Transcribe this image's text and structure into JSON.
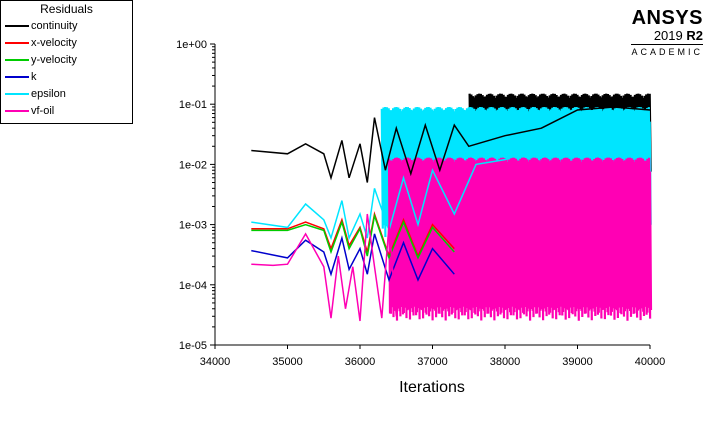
{
  "legend": {
    "title": "Residuals",
    "items": [
      {
        "label": "continuity",
        "color": "#000000"
      },
      {
        "label": "x-velocity",
        "color": "#ff0000"
      },
      {
        "label": "y-velocity",
        "color": "#00cc00"
      },
      {
        "label": "k",
        "color": "#0000cc"
      },
      {
        "label": "epsilon",
        "color": "#00e5ff"
      },
      {
        "label": "vf-oil",
        "color": "#ff00b4"
      }
    ]
  },
  "brand": {
    "name": "ANSYS",
    "version": "2019",
    "release": "R2",
    "edition": "ACADEMIC"
  },
  "chart_data": {
    "type": "line",
    "title": "",
    "xlabel": "Iterations",
    "ylabel": "",
    "xlim": [
      34000,
      40000
    ],
    "ylim": [
      1e-05,
      1
    ],
    "yscale": "log",
    "xticks": [
      34000,
      35000,
      36000,
      37000,
      38000,
      39000,
      40000
    ],
    "xtick_labels": [
      "34000",
      "35000",
      "36000",
      "37000",
      "38000",
      "39000",
      "40000"
    ],
    "yticks": [
      1e-05,
      0.0001,
      0.001,
      0.01,
      0.1,
      1
    ],
    "ytick_labels": [
      "1e-05",
      "1e-04",
      "1e-03",
      "1e-02",
      "1e-01",
      "1e+00"
    ],
    "grid": false,
    "legend_position": "top-left",
    "series": [
      {
        "name": "continuity",
        "color": "#000000",
        "x": [
          34500,
          35000,
          35250,
          35500,
          35600,
          35750,
          35850,
          36000,
          36100,
          36200,
          36350,
          36500,
          36700,
          36900,
          37100,
          37300,
          37500,
          38000,
          38500,
          39000,
          39500,
          40000
        ],
        "y": [
          0.017,
          0.015,
          0.022,
          0.015,
          0.006,
          0.025,
          0.006,
          0.022,
          0.005,
          0.06,
          0.008,
          0.04,
          0.007,
          0.045,
          0.008,
          0.045,
          0.02,
          0.03,
          0.04,
          0.08,
          0.09,
          0.08
        ],
        "band": [
          37500,
          40000,
          0.005,
          0.15
        ]
      },
      {
        "name": "x-velocity",
        "color": "#ff0000",
        "x": [
          34500,
          35000,
          35250,
          35500,
          35600,
          35750,
          35850,
          36000,
          36100,
          36200,
          36400,
          36600,
          36800,
          37000,
          37300
        ],
        "y": [
          0.00085,
          0.00085,
          0.0011,
          0.00085,
          0.0004,
          0.0012,
          0.00045,
          0.0009,
          0.00035,
          0.0015,
          0.0003,
          0.0012,
          0.0003,
          0.001,
          0.0004
        ]
      },
      {
        "name": "y-velocity",
        "color": "#00cc00",
        "x": [
          34500,
          35000,
          35250,
          35500,
          35600,
          35750,
          35850,
          36000,
          36100,
          36200,
          36400,
          36600,
          36800,
          37000,
          37300
        ],
        "y": [
          0.0008,
          0.0008,
          0.001,
          0.0008,
          0.00035,
          0.0011,
          0.0004,
          0.00085,
          0.0003,
          0.0014,
          0.00028,
          0.0011,
          0.00028,
          0.0009,
          0.00035
        ]
      },
      {
        "name": "k",
        "color": "#0000cc",
        "x": [
          34500,
          35000,
          35250,
          35500,
          35600,
          35750,
          35850,
          36000,
          36100,
          36200,
          36400,
          36600,
          36800,
          37000,
          37300
        ],
        "y": [
          0.00037,
          0.00028,
          0.00055,
          0.00035,
          0.00015,
          0.0006,
          0.00018,
          0.0004,
          0.00015,
          0.0007,
          0.00012,
          0.0005,
          0.00012,
          0.0004,
          0.00015
        ]
      },
      {
        "name": "epsilon",
        "color": "#00e5ff",
        "x": [
          34500,
          35000,
          35250,
          35500,
          35600,
          35750,
          35850,
          36000,
          36100,
          36200,
          36400,
          36600,
          36800,
          37000,
          37300,
          37600,
          38000,
          38500,
          39000,
          40000
        ],
        "y": [
          0.0011,
          0.0009,
          0.0022,
          0.0012,
          0.0006,
          0.0025,
          0.0006,
          0.0015,
          0.0006,
          0.004,
          0.0008,
          0.006,
          0.001,
          0.008,
          0.0015,
          0.01,
          0.012,
          0.02,
          0.04,
          0.05
        ],
        "band": [
          36300,
          40000,
          0.0006,
          0.09
        ]
      },
      {
        "name": "vf-oil",
        "color": "#ff00b4",
        "x": [
          34500,
          34800,
          35000,
          35250,
          35500,
          35600,
          35700,
          35800,
          35900,
          36000,
          36100,
          36200,
          36300,
          36400,
          36500
        ],
        "y": [
          0.00022,
          0.00021,
          0.00022,
          0.0007,
          0.0002,
          2.8e-05,
          0.0003,
          4e-05,
          0.0002,
          2.5e-05,
          0.0015,
          0.0002,
          2.8e-05,
          0.001,
          3e-05
        ],
        "band": [
          36400,
          40000,
          2.5e-05,
          0.013
        ]
      }
    ]
  }
}
